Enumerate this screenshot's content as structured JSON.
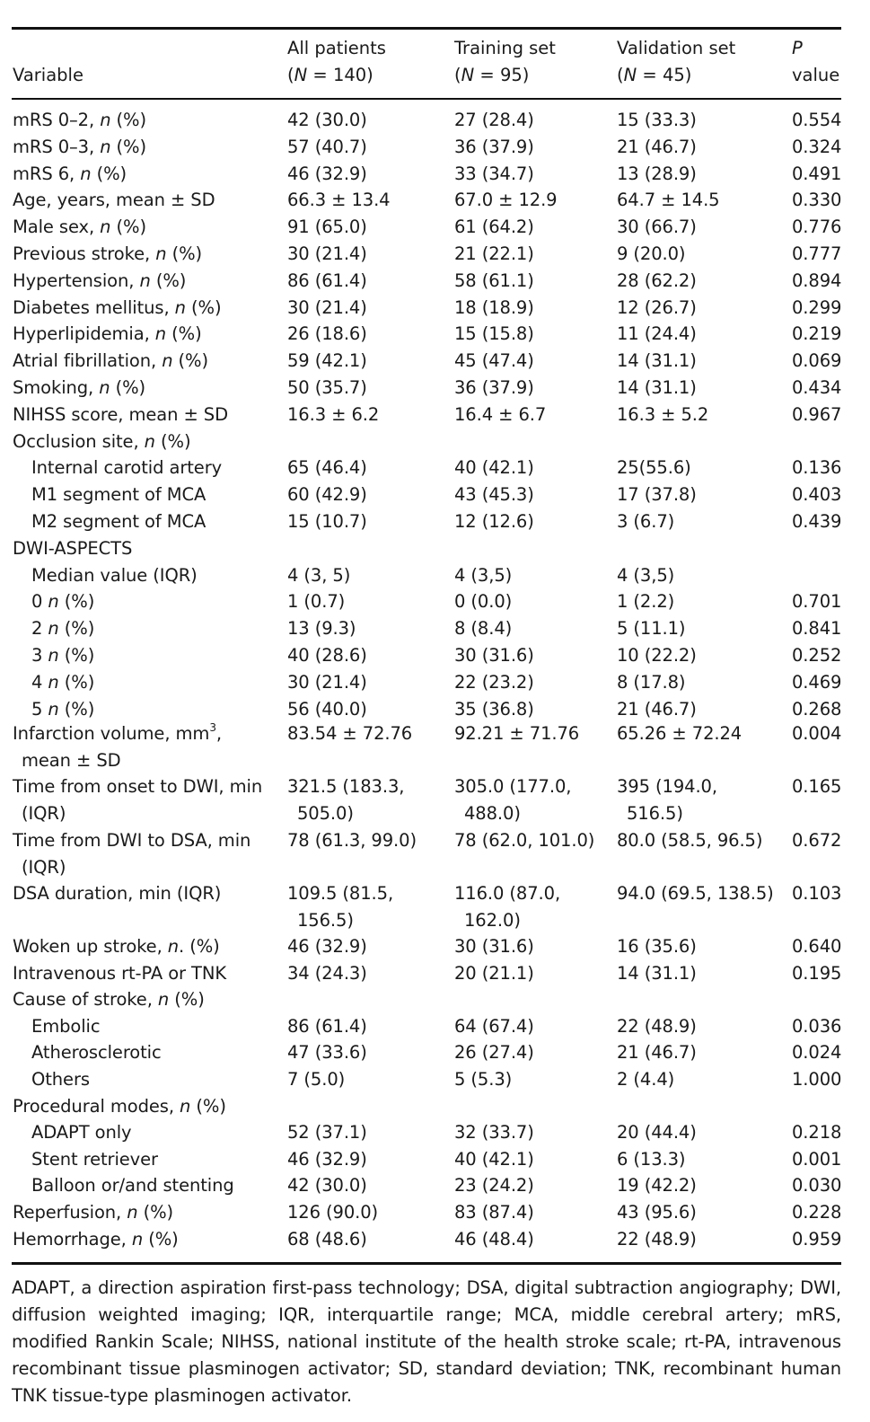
{
  "header": {
    "variable": "Variable",
    "all_line1": "All patients",
    "all_n_label": "N",
    "all_n_value": " = 140)",
    "train_line1": "Training set",
    "train_n_label": "N",
    "train_n_value": " = 95)",
    "valid_line1": "Validation set",
    "valid_n_label": "N",
    "valid_n_value": " = 45)",
    "p_line1": "P",
    "p_line2": "value"
  },
  "rows": [
    {
      "label": "mRS 0–2, ",
      "it": "n",
      "rest": " (%)",
      "indent": false,
      "all": "42 (30.0)",
      "train": "27 (28.4)",
      "valid": "15 (33.3)",
      "p": "0.554"
    },
    {
      "label": "mRS 0–3, ",
      "it": "n",
      "rest": " (%)",
      "indent": false,
      "all": "57 (40.7)",
      "train": "36 (37.9)",
      "valid": "21 (46.7)",
      "p": "0.324"
    },
    {
      "label": "mRS 6, ",
      "it": "n",
      "rest": " (%)",
      "indent": false,
      "all": "46 (32.9)",
      "train": "33 (34.7)",
      "valid": "13 (28.9)",
      "p": "0.491"
    },
    {
      "label": "Age, years, mean ± SD",
      "it": "",
      "rest": "",
      "indent": false,
      "all": "66.3 ± 13.4",
      "train": "67.0 ± 12.9",
      "valid": "64.7 ± 14.5",
      "p": "0.330"
    },
    {
      "label": "Male sex, ",
      "it": "n",
      "rest": " (%)",
      "indent": false,
      "all": "91 (65.0)",
      "train": "61 (64.2)",
      "valid": "30 (66.7)",
      "p": "0.776"
    },
    {
      "label": "Previous stroke, ",
      "it": "n",
      "rest": " (%)",
      "indent": false,
      "all": "30 (21.4)",
      "train": "21 (22.1)",
      "valid": "9 (20.0)",
      "p": "0.777"
    },
    {
      "label": "Hypertension, ",
      "it": "n",
      "rest": " (%)",
      "indent": false,
      "all": "86 (61.4)",
      "train": "58 (61.1)",
      "valid": "28 (62.2)",
      "p": "0.894"
    },
    {
      "label": "Diabetes mellitus, ",
      "it": "n",
      "rest": " (%)",
      "indent": false,
      "all": "30 (21.4)",
      "train": "18 (18.9)",
      "valid": "12 (26.7)",
      "p": "0.299"
    },
    {
      "label": "Hyperlipidemia, ",
      "it": "n",
      "rest": " (%)",
      "indent": false,
      "all": "26 (18.6)",
      "train": "15 (15.8)",
      "valid": "11 (24.4)",
      "p": "0.219"
    },
    {
      "label": "Atrial fibrillation, ",
      "it": "n",
      "rest": " (%)",
      "indent": false,
      "all": "59 (42.1)",
      "train": "45 (47.4)",
      "valid": "14 (31.1)",
      "p": "0.069"
    },
    {
      "label": "Smoking, ",
      "it": "n",
      "rest": " (%)",
      "indent": false,
      "all": "50 (35.7)",
      "train": "36 (37.9)",
      "valid": "14 (31.1)",
      "p": "0.434"
    },
    {
      "label": "NIHSS score, mean ± SD",
      "it": "",
      "rest": "",
      "indent": false,
      "all": "16.3 ± 6.2",
      "train": "16.4 ± 6.7",
      "valid": "16.3 ± 5.2",
      "p": "0.967"
    },
    {
      "label": "Occlusion site, ",
      "it": "n",
      "rest": " (%)",
      "indent": false,
      "all": "",
      "train": "",
      "valid": "",
      "p": ""
    },
    {
      "label": "Internal carotid artery",
      "it": "",
      "rest": "",
      "indent": true,
      "all": "65 (46.4)",
      "train": "40 (42.1)",
      "valid": "25(55.6)",
      "p": "0.136"
    },
    {
      "label": "M1 segment of MCA",
      "it": "",
      "rest": "",
      "indent": true,
      "all": "60 (42.9)",
      "train": "43 (45.3)",
      "valid": "17 (37.8)",
      "p": "0.403"
    },
    {
      "label": "M2 segment of MCA",
      "it": "",
      "rest": "",
      "indent": true,
      "all": "15 (10.7)",
      "train": "12 (12.6)",
      "valid": "3 (6.7)",
      "p": "0.439"
    },
    {
      "label": "DWI-ASPECTS",
      "it": "",
      "rest": "",
      "indent": false,
      "all": "",
      "train": "",
      "valid": "",
      "p": ""
    },
    {
      "label": "Median value (IQR)",
      "it": "",
      "rest": "",
      "indent": true,
      "all": "4 (3, 5)",
      "train": "4 (3,5)",
      "valid": "4 (3,5)",
      "p": ""
    },
    {
      "label": "0 ",
      "it": "n",
      "rest": " (%)",
      "indent": true,
      "all": "1 (0.7)",
      "train": "0 (0.0)",
      "valid": "1 (2.2)",
      "p": "0.701"
    },
    {
      "label": "2 ",
      "it": "n",
      "rest": " (%)",
      "indent": true,
      "all": "13 (9.3)",
      "train": "8 (8.4)",
      "valid": "5 (11.1)",
      "p": "0.841"
    },
    {
      "label": "3 ",
      "it": "n",
      "rest": " (%)",
      "indent": true,
      "all": "40 (28.6)",
      "train": "30 (31.6)",
      "valid": "10 (22.2)",
      "p": "0.252"
    },
    {
      "label": "4 ",
      "it": "n",
      "rest": " (%)",
      "indent": true,
      "all": "30 (21.4)",
      "train": "22 (23.2)",
      "valid": "8 (17.8)",
      "p": "0.469"
    },
    {
      "label": "5 ",
      "it": "n",
      "rest": " (%)",
      "indent": true,
      "all": "56 (40.0)",
      "train": "35 (36.8)",
      "valid": "21 (46.7)",
      "p": "0.268"
    }
  ],
  "infarct": {
    "label1": "Infarction volume, mm",
    "sup": "3",
    "label1_end": ",",
    "label2": "mean ± SD",
    "all": "83.54 ± 72.76",
    "train": "92.21 ± 71.76",
    "valid": "65.26 ± 72.24",
    "p": "0.004"
  },
  "onset": {
    "label1": "Time from onset to DWI, min",
    "label2": "(IQR)",
    "all1": "321.5 (183.3,",
    "all2": "505.0)",
    "train1": "305.0 (177.0,",
    "train2": "488.0)",
    "valid1": "395 (194.0,",
    "valid2": "516.5)",
    "p": "0.165"
  },
  "dwidsa": {
    "label1": "Time from DWI to DSA, min",
    "label2": "(IQR)",
    "all": "78 (61.3, 99.0)",
    "train": "78 (62.0, 101.0)",
    "valid": "80.0 (58.5, 96.5)",
    "p": "0.672"
  },
  "dsa": {
    "label1": "DSA duration, min (IQR)",
    "all1": "109.5 (81.5,",
    "all2": "156.5)",
    "train1": "116.0 (87.0,",
    "train2": "162.0)",
    "valid": "94.0 (69.5, 138.5)",
    "p": "0.103"
  },
  "rows2": [
    {
      "label": "Woken up stroke, ",
      "it": "n",
      "rest": ". (%)",
      "indent": false,
      "all": "46 (32.9)",
      "train": "30 (31.6)",
      "valid": "16 (35.6)",
      "p": "0.640"
    },
    {
      "label": "Intravenous rt-PA or TNK",
      "it": "",
      "rest": "",
      "indent": false,
      "all": "34 (24.3)",
      "train": "20 (21.1)",
      "valid": "14 (31.1)",
      "p": "0.195"
    },
    {
      "label": "Cause of stroke, ",
      "it": "n",
      "rest": " (%)",
      "indent": false,
      "all": "",
      "train": "",
      "valid": "",
      "p": ""
    },
    {
      "label": "Embolic",
      "it": "",
      "rest": "",
      "indent": true,
      "all": "86 (61.4)",
      "train": "64 (67.4)",
      "valid": "22 (48.9)",
      "p": "0.036"
    },
    {
      "label": "Atherosclerotic",
      "it": "",
      "rest": "",
      "indent": true,
      "all": "47 (33.6)",
      "train": "26 (27.4)",
      "valid": "21 (46.7)",
      "p": "0.024"
    },
    {
      "label": "Others",
      "it": "",
      "rest": "",
      "indent": true,
      "all": "7 (5.0)",
      "train": "5 (5.3)",
      "valid": "2 (4.4)",
      "p": "1.000"
    },
    {
      "label": "Procedural modes, ",
      "it": "n",
      "rest": " (%)",
      "indent": false,
      "all": "",
      "train": "",
      "valid": "",
      "p": ""
    },
    {
      "label": "ADAPT only",
      "it": "",
      "rest": "",
      "indent": true,
      "all": "52 (37.1)",
      "train": "32 (33.7)",
      "valid": "20 (44.4)",
      "p": "0.218"
    },
    {
      "label": "Stent retriever",
      "it": "",
      "rest": "",
      "indent": true,
      "all": "46 (32.9)",
      "train": "40 (42.1)",
      "valid": "6 (13.3)",
      "p": "0.001"
    },
    {
      "label": "Balloon or/and stenting",
      "it": "",
      "rest": "",
      "indent": true,
      "all": "42 (30.0)",
      "train": "23 (24.2)",
      "valid": "19 (42.2)",
      "p": "0.030"
    },
    {
      "label": "Reperfusion, ",
      "it": "n",
      "rest": " (%)",
      "indent": false,
      "all": "126 (90.0)",
      "train": "83 (87.4)",
      "valid": "43 (95.6)",
      "p": "0.228"
    },
    {
      "label": "Hemorrhage, ",
      "it": "n",
      "rest": " (%)",
      "indent": false,
      "all": "68 (48.6)",
      "train": "46 (48.4)",
      "valid": "22 (48.9)",
      "p": "0.959"
    }
  ],
  "footnote": "ADAPT, a direction aspiration first-pass technology; DSA, digital subtraction angiography; DWI, diffusion weighted imaging; IQR, interquartile range; MCA, middle cerebral artery; mRS, modified Rankin Scale; NIHSS, national institute of the health stroke scale; rt-PA, intravenous recombinant tissue plasminogen activator; SD, standard deviation; TNK, recombinant human TNK tissue-type plasminogen activator."
}
